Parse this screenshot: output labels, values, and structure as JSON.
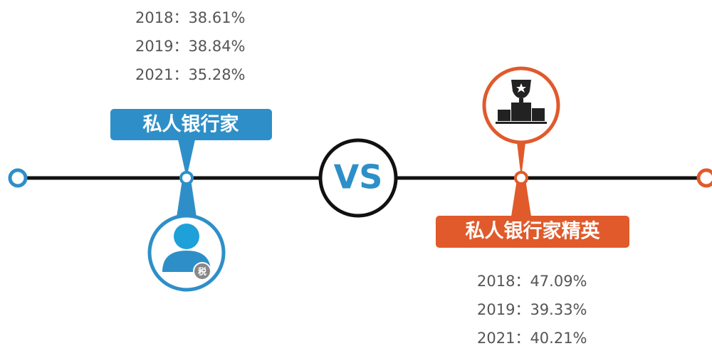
{
  "left": {
    "label": "私人银行家",
    "stats": [
      "2018：38.61%",
      "2019：38.84%",
      "2021：35.28%"
    ],
    "badge": "税"
  },
  "center": {
    "label": "VS"
  },
  "right": {
    "label": "私人银行家精英",
    "stats": [
      "2018：47.09%",
      "2019：39.33%",
      "2021：40.21%"
    ]
  }
}
